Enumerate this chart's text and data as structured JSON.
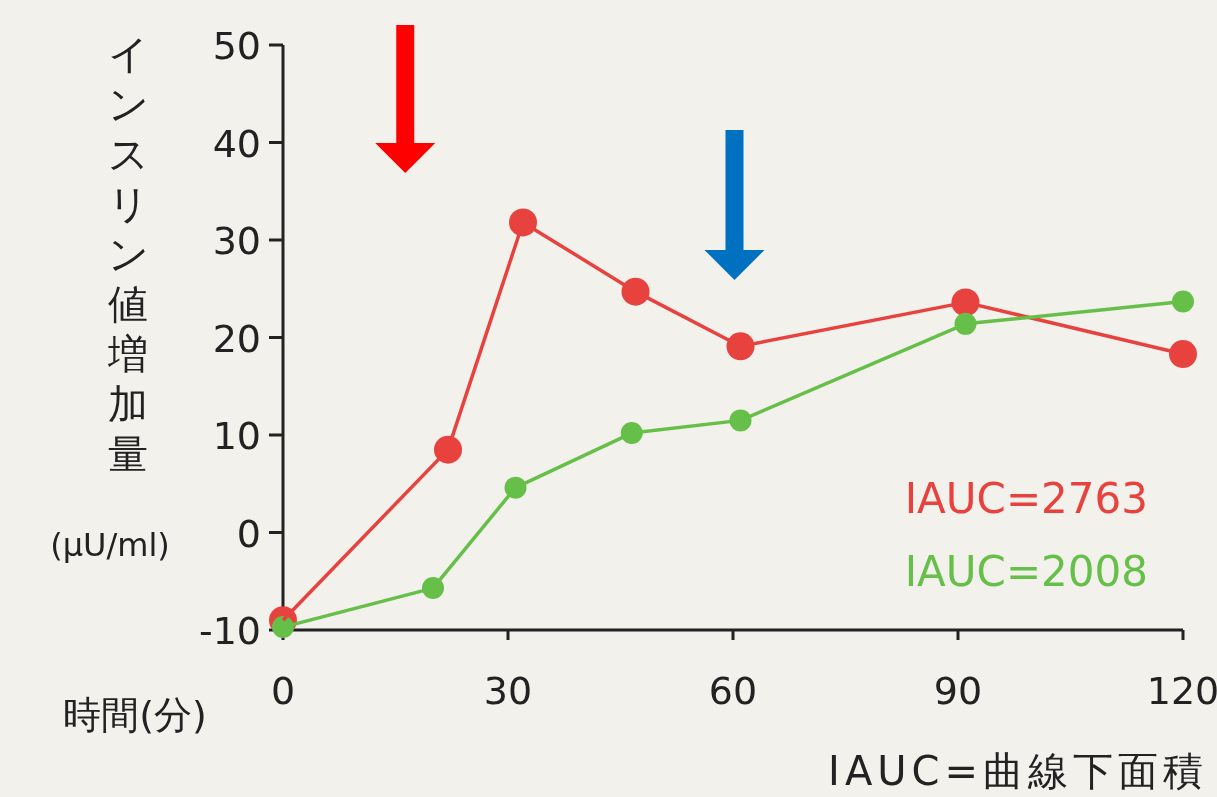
{
  "chart_data": {
    "type": "line",
    "ylabel": "インスリン値増加量",
    "xlabel": "時間(分)",
    "series": [
      {
        "name": "IAUC=2763",
        "color": "#e8423f",
        "x": [
          0,
          22,
          32,
          47,
          61,
          91,
          120
        ],
        "values": [
          -9,
          8.5,
          31.8,
          24.7,
          19.1,
          23.6,
          18.3
        ]
      },
      {
        "name": "IAUC=2008",
        "color": "#66bf48",
        "x": [
          0,
          20,
          31,
          46.5,
          61,
          91,
          120
        ],
        "values": [
          -9.7,
          -5.7,
          4.6,
          10.2,
          11.5,
          21.4,
          23.7
        ]
      }
    ],
    "xlim": [
      0,
      120
    ],
    "xticks": [
      0,
      30,
      60,
      90,
      120
    ],
    "ylim": [
      -10,
      50
    ],
    "yticks": [
      -10,
      0,
      10,
      20,
      30,
      40,
      50
    ],
    "annotations": [
      "(μU/ml)",
      "IAUC=曲線下面積"
    ],
    "marker": "circle",
    "line_style": "solid",
    "grid": false,
    "legend": "bottom right"
  }
}
